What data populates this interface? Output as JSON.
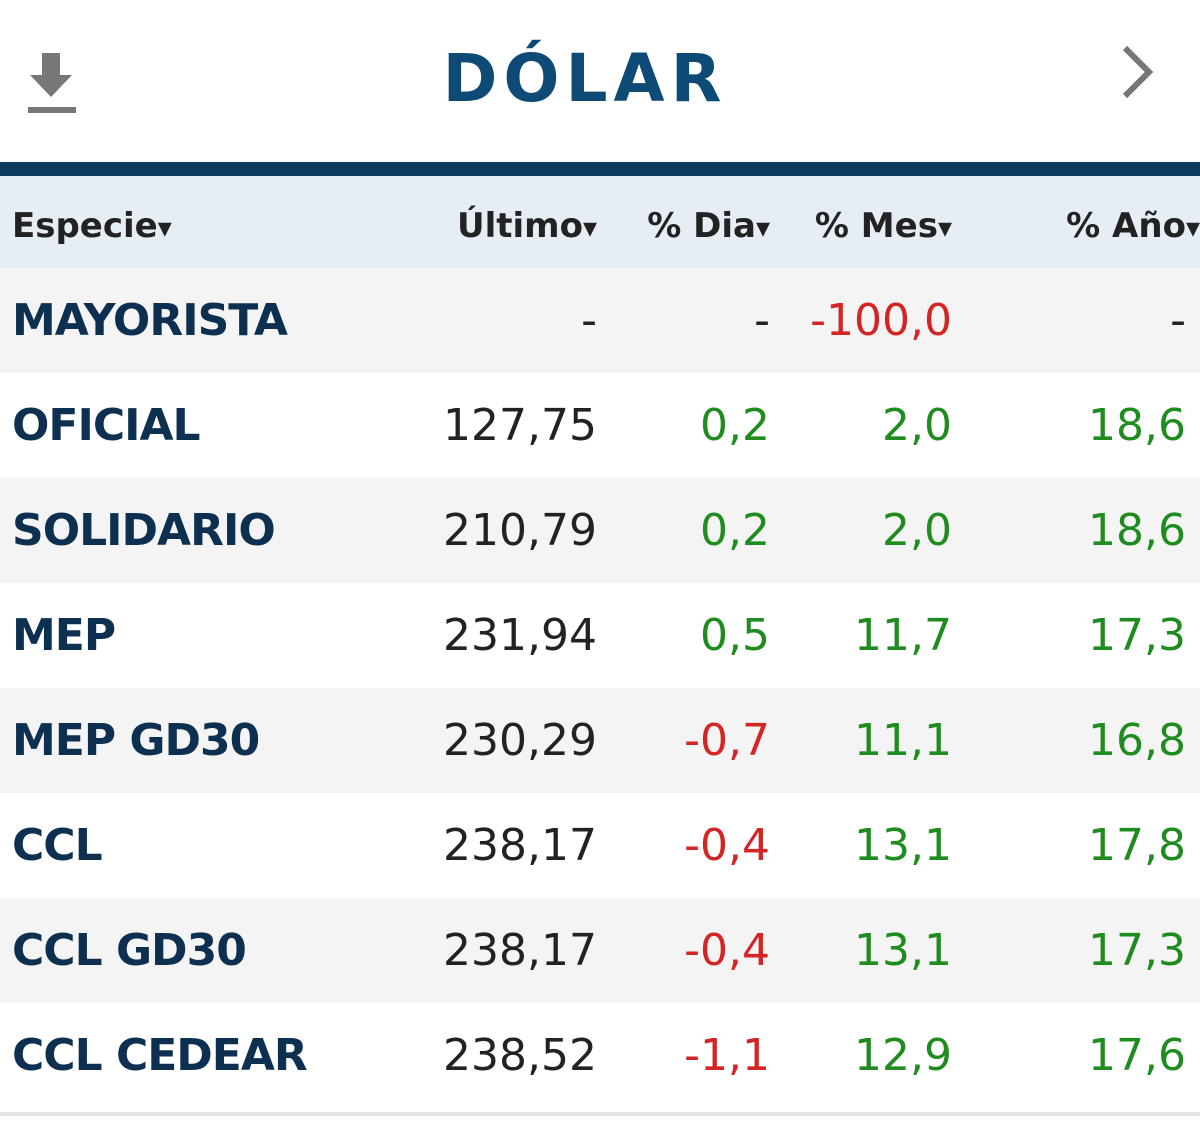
{
  "header": {
    "title": "DÓLAR"
  },
  "table": {
    "columns": [
      "Especie",
      "Último",
      "% Dia",
      "% Mes",
      "% Año"
    ],
    "rows": [
      [
        "MAYORISTA",
        "-",
        "-",
        "-100,0",
        "-"
      ],
      [
        "OFICIAL",
        "127,75",
        "0,2",
        "2,0",
        "18,6"
      ],
      [
        "SOLIDARIO",
        "210,79",
        "0,2",
        "2,0",
        "18,6"
      ],
      [
        "MEP",
        "231,94",
        "0,5",
        "11,7",
        "17,3"
      ],
      [
        "MEP GD30",
        "230,29",
        "-0,7",
        "11,1",
        "16,8"
      ],
      [
        "CCL",
        "238,17",
        "-0,4",
        "13,1",
        "17,8"
      ],
      [
        "CCL GD30",
        "238,17",
        "-0,4",
        "13,1",
        "17,3"
      ],
      [
        "CCL CEDEAR",
        "238,52",
        "-1,1",
        "12,9",
        "17,6"
      ]
    ]
  },
  "colors": {
    "positive": "#1e8c1e",
    "negative": "#d42424",
    "neutral": "#222222"
  }
}
